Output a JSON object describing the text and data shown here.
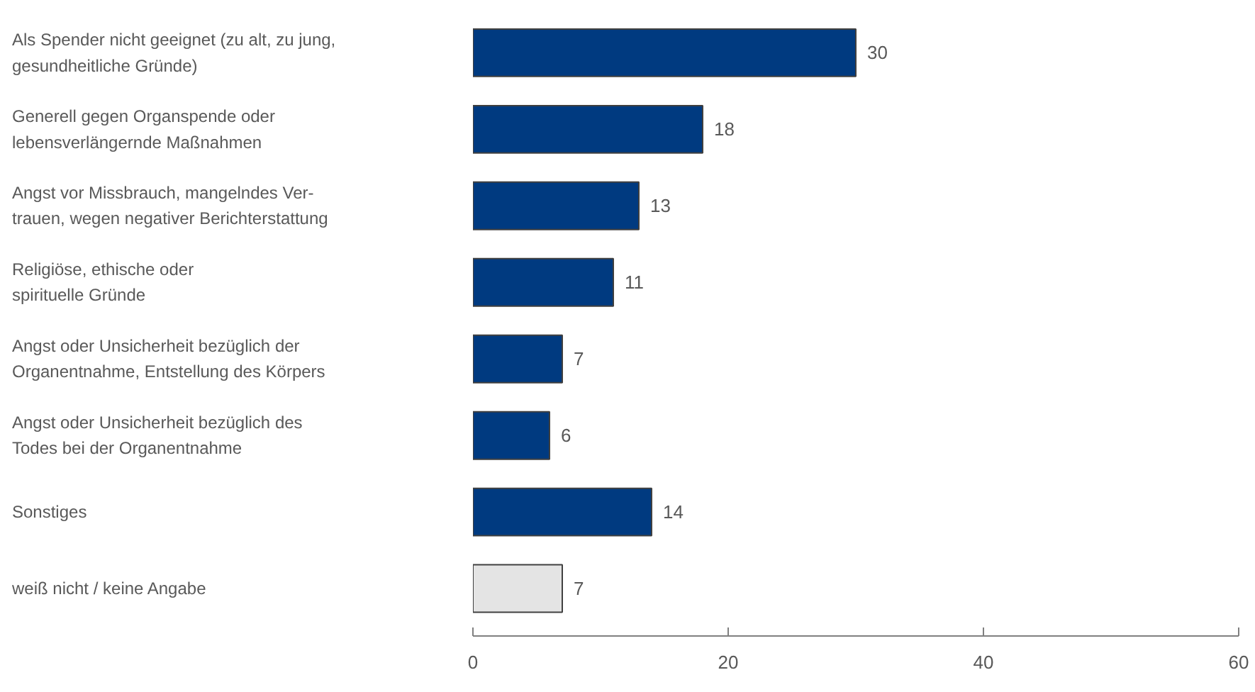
{
  "chart_data": {
    "type": "bar",
    "orientation": "horizontal",
    "categories": [
      "Als Spender nicht geeignet (zu alt, zu jung,\ngesundheitliche Gründe)",
      "Generell gegen Organspende oder\nlebensverlängernde Maßnahmen",
      "Angst vor Missbrauch, mangelndes Ver-\ntrauen, wegen negativer Berichterstattung",
      "Religiöse, ethische oder\nspirituelle Gründe",
      "Angst oder Unsicherheit bezüglich der\nOrganentnahme, Entstellung des Körpers",
      "Angst oder Unsicherheit bezüglich des\nTodes bei der Organentnahme",
      "Sonstiges",
      "weiß nicht / keine Angabe"
    ],
    "values": [
      30,
      18,
      13,
      11,
      7,
      6,
      14,
      7
    ],
    "colors": [
      "#003a80",
      "#003a80",
      "#003a80",
      "#003a80",
      "#003a80",
      "#003a80",
      "#003a80",
      "#e4e4e4"
    ],
    "xlim": [
      0,
      60
    ],
    "xticks": [
      0,
      20,
      40,
      60
    ],
    "data_labels": true,
    "grid": false
  }
}
